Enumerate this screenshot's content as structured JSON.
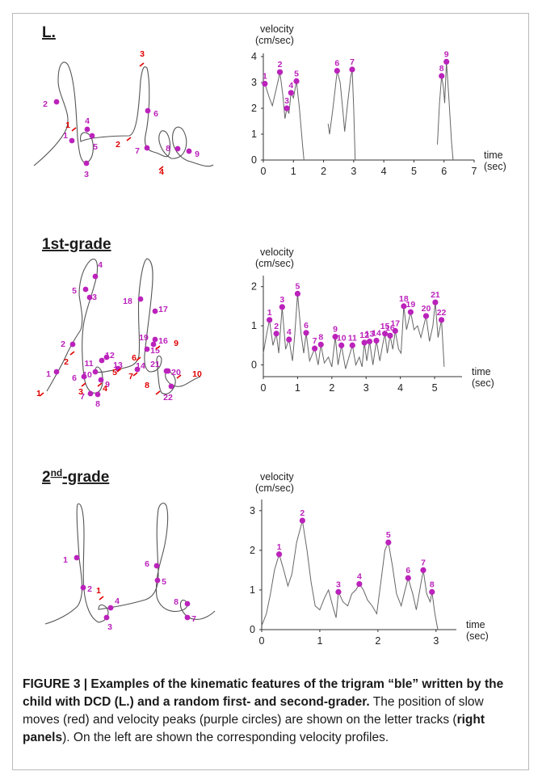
{
  "panels": [
    {
      "label": "L.",
      "track_peak_labels": [
        "1",
        "2",
        "3",
        "4",
        "5",
        "6",
        "7",
        "8",
        "9"
      ],
      "track_slow_labels": [
        "1",
        "2",
        "3",
        "4"
      ]
    },
    {
      "label": "1st-grade",
      "track_peak_labels": [
        "1",
        "2",
        "3",
        "4",
        "5",
        "6",
        "7",
        "8",
        "9",
        "10",
        "11",
        "12",
        "13",
        "14",
        "15",
        "16",
        "17",
        "18",
        "19",
        "20",
        "21",
        "22"
      ],
      "track_slow_labels": [
        "1",
        "2",
        "3",
        "4",
        "5",
        "6",
        "7",
        "8",
        "9",
        "10"
      ]
    },
    {
      "label": "2nd-grade",
      "label_main": "2",
      "label_sup": "nd",
      "label_rest": "-grade",
      "track_peak_labels": [
        "1",
        "2",
        "3",
        "4",
        "5",
        "6",
        "7",
        "8"
      ],
      "track_slow_labels": [
        "1"
      ]
    }
  ],
  "colors": {
    "peak": "#bb22bb",
    "slow": "#e00000",
    "trace": "#666666"
  },
  "chart_data": [
    {
      "type": "line",
      "xlabel": "time (sec)",
      "ylabel": "velocity (cm/sec)",
      "ylabel_line1": "velocity",
      "ylabel_line2": "(cm/sec)",
      "xlabel_line1": "time",
      "xlabel_line2": "(sec)",
      "xlim": [
        0,
        7
      ],
      "ylim": [
        0,
        4
      ],
      "xticks": [
        "0",
        "1",
        "2",
        "3",
        "4",
        "5",
        "6",
        "7"
      ],
      "yticks": [
        "0",
        "1",
        "2",
        "3",
        "4"
      ],
      "peaks": [
        {
          "label": "1",
          "x": 0.05,
          "y": 2.95
        },
        {
          "label": "2",
          "x": 0.55,
          "y": 3.4
        },
        {
          "label": "3",
          "x": 0.78,
          "y": 2.0
        },
        {
          "label": "4",
          "x": 0.92,
          "y": 2.6
        },
        {
          "label": "5",
          "x": 1.1,
          "y": 3.05
        },
        {
          "label": "6",
          "x": 2.45,
          "y": 3.45
        },
        {
          "label": "7",
          "x": 2.95,
          "y": 3.5
        },
        {
          "label": "8",
          "x": 5.92,
          "y": 3.25
        },
        {
          "label": "9",
          "x": 6.08,
          "y": 3.8
        }
      ],
      "segments": [
        [
          [
            0,
            2.9
          ],
          [
            0.05,
            2.95
          ],
          [
            0.2,
            2.4
          ],
          [
            0.3,
            2.1
          ],
          [
            0.4,
            2.6
          ],
          [
            0.5,
            3.1
          ],
          [
            0.55,
            3.4
          ],
          [
            0.65,
            2.5
          ],
          [
            0.72,
            1.6
          ],
          [
            0.78,
            2.0
          ],
          [
            0.85,
            1.8
          ],
          [
            0.92,
            2.6
          ],
          [
            1.0,
            2.4
          ],
          [
            1.1,
            3.05
          ],
          [
            1.2,
            2.0
          ],
          [
            1.3,
            0.6
          ],
          [
            1.35,
            0
          ]
        ],
        [
          [
            2.15,
            1.4
          ],
          [
            2.2,
            1.0
          ],
          [
            2.3,
            1.9
          ],
          [
            2.4,
            2.9
          ],
          [
            2.45,
            3.45
          ],
          [
            2.55,
            3.0
          ],
          [
            2.65,
            1.8
          ],
          [
            2.7,
            1.1
          ],
          [
            2.8,
            2.2
          ],
          [
            2.9,
            3.2
          ],
          [
            2.95,
            3.5
          ],
          [
            3.0,
            2.0
          ],
          [
            3.05,
            0
          ]
        ],
        [
          [
            5.78,
            0.6
          ],
          [
            5.85,
            2.2
          ],
          [
            5.92,
            3.25
          ],
          [
            5.98,
            2.8
          ],
          [
            6.02,
            2.2
          ],
          [
            6.08,
            3.8
          ],
          [
            6.15,
            2.6
          ],
          [
            6.25,
            0.7
          ],
          [
            6.3,
            0
          ]
        ]
      ]
    },
    {
      "type": "line",
      "xlabel": "time (sec)",
      "ylabel": "velocity (cm/sec)",
      "ylabel_line1": "velocity",
      "ylabel_line2": "(cm/sec)",
      "xlabel_line1": "time",
      "xlabel_line2": "(sec)",
      "xlim": [
        0,
        5.8
      ],
      "ylim": [
        -0.3,
        2.2
      ],
      "xticks": [
        "0",
        "1",
        "2",
        "3",
        "4",
        "5"
      ],
      "xtick_values": [
        0,
        1,
        2,
        3,
        4,
        5
      ],
      "yticks": [
        "0",
        "1",
        "2"
      ],
      "ytick_values": [
        0,
        1,
        2
      ],
      "peaks": [
        {
          "label": "1",
          "x": 0.18,
          "y": 1.15
        },
        {
          "label": "2",
          "x": 0.38,
          "y": 0.8
        },
        {
          "label": "3",
          "x": 0.55,
          "y": 1.48
        },
        {
          "label": "4",
          "x": 0.75,
          "y": 0.65
        },
        {
          "label": "5",
          "x": 1.0,
          "y": 1.82
        },
        {
          "label": "6",
          "x": 1.25,
          "y": 0.82
        },
        {
          "label": "7",
          "x": 1.5,
          "y": 0.42
        },
        {
          "label": "8",
          "x": 1.68,
          "y": 0.52
        },
        {
          "label": "9",
          "x": 2.1,
          "y": 0.72
        },
        {
          "label": "10",
          "x": 2.28,
          "y": 0.5
        },
        {
          "label": "11",
          "x": 2.6,
          "y": 0.5
        },
        {
          "label": "12",
          "x": 2.95,
          "y": 0.57
        },
        {
          "label": "13",
          "x": 3.1,
          "y": 0.6
        },
        {
          "label": "14",
          "x": 3.3,
          "y": 0.62
        },
        {
          "label": "15",
          "x": 3.55,
          "y": 0.8
        },
        {
          "label": "16",
          "x": 3.7,
          "y": 0.75
        },
        {
          "label": "17",
          "x": 3.85,
          "y": 0.87
        },
        {
          "label": "18",
          "x": 4.1,
          "y": 1.5
        },
        {
          "label": "19",
          "x": 4.3,
          "y": 1.35
        },
        {
          "label": "20",
          "x": 4.75,
          "y": 1.25
        },
        {
          "label": "21",
          "x": 5.02,
          "y": 1.6
        },
        {
          "label": "22",
          "x": 5.2,
          "y": 1.15
        }
      ],
      "segments": [
        [
          [
            0,
            0.3
          ],
          [
            0.1,
            0.8
          ],
          [
            0.18,
            1.15
          ],
          [
            0.28,
            0.5
          ],
          [
            0.38,
            0.8
          ],
          [
            0.45,
            0.3
          ],
          [
            0.55,
            1.48
          ],
          [
            0.65,
            0.4
          ],
          [
            0.75,
            0.65
          ],
          [
            0.85,
            0.1
          ],
          [
            0.92,
            0.8
          ],
          [
            1.0,
            1.82
          ],
          [
            1.1,
            0.8
          ],
          [
            1.18,
            0.3
          ],
          [
            1.25,
            0.82
          ],
          [
            1.35,
            0.1
          ],
          [
            1.5,
            0.42
          ],
          [
            1.6,
            0.0
          ],
          [
            1.68,
            0.52
          ],
          [
            1.78,
            0.05
          ],
          [
            1.9,
            0.2
          ],
          [
            2.0,
            -0.05
          ],
          [
            2.1,
            0.72
          ],
          [
            2.18,
            0.0
          ],
          [
            2.28,
            0.5
          ],
          [
            2.4,
            -0.1
          ],
          [
            2.5,
            0.2
          ],
          [
            2.6,
            0.5
          ],
          [
            2.7,
            0.0
          ],
          [
            2.8,
            0.2
          ],
          [
            2.88,
            -0.05
          ],
          [
            2.95,
            0.57
          ],
          [
            3.02,
            0.1
          ],
          [
            3.1,
            0.6
          ],
          [
            3.2,
            0.0
          ],
          [
            3.3,
            0.62
          ],
          [
            3.4,
            0.1
          ],
          [
            3.48,
            0.5
          ],
          [
            3.55,
            0.8
          ],
          [
            3.62,
            0.3
          ],
          [
            3.7,
            0.75
          ],
          [
            3.78,
            0.4
          ],
          [
            3.85,
            0.87
          ],
          [
            3.95,
            0.4
          ],
          [
            4.02,
            0.3
          ],
          [
            4.1,
            1.5
          ],
          [
            4.18,
            0.9
          ],
          [
            4.3,
            1.35
          ],
          [
            4.4,
            0.9
          ],
          [
            4.5,
            1.0
          ],
          [
            4.6,
            0.7
          ],
          [
            4.75,
            1.25
          ],
          [
            4.85,
            0.6
          ],
          [
            4.95,
            1.0
          ],
          [
            5.02,
            1.6
          ],
          [
            5.1,
            0.7
          ],
          [
            5.2,
            1.15
          ],
          [
            5.28,
            -0.05
          ]
        ]
      ]
    },
    {
      "type": "line",
      "xlabel": "time (sec)",
      "ylabel": "velocity (cm/sec)",
      "ylabel_line1": "velocity",
      "ylabel_line2": "(cm/sec)",
      "xlabel_line1": "time",
      "xlabel_line2": "(sec)",
      "xlim": [
        0,
        3.35
      ],
      "ylim": [
        0,
        3.2
      ],
      "xticks": [
        "0",
        "1",
        "2",
        "3"
      ],
      "xtick_values": [
        0,
        1,
        2,
        3
      ],
      "yticks": [
        "0",
        "1",
        "2",
        "3"
      ],
      "ytick_values": [
        0,
        1,
        2,
        3
      ],
      "peaks": [
        {
          "label": "1",
          "x": 0.3,
          "y": 1.9
        },
        {
          "label": "2",
          "x": 0.7,
          "y": 2.75
        },
        {
          "label": "3",
          "x": 1.32,
          "y": 0.95
        },
        {
          "label": "4",
          "x": 1.68,
          "y": 1.15
        },
        {
          "label": "5",
          "x": 2.18,
          "y": 2.2
        },
        {
          "label": "6",
          "x": 2.52,
          "y": 1.3
        },
        {
          "label": "7",
          "x": 2.78,
          "y": 1.5
        },
        {
          "label": "8",
          "x": 2.93,
          "y": 0.95
        }
      ],
      "segments": [
        [
          [
            0,
            0.1
          ],
          [
            0.08,
            0.4
          ],
          [
            0.15,
            0.9
          ],
          [
            0.22,
            1.5
          ],
          [
            0.3,
            1.9
          ],
          [
            0.38,
            1.5
          ],
          [
            0.45,
            1.1
          ],
          [
            0.52,
            1.4
          ],
          [
            0.6,
            2.2
          ],
          [
            0.7,
            2.75
          ],
          [
            0.78,
            2.0
          ],
          [
            0.85,
            1.2
          ],
          [
            0.92,
            0.6
          ],
          [
            1.0,
            0.5
          ],
          [
            1.08,
            0.8
          ],
          [
            1.15,
            1.0
          ],
          [
            1.22,
            0.6
          ],
          [
            1.28,
            0.3
          ],
          [
            1.32,
            0.95
          ],
          [
            1.4,
            0.7
          ],
          [
            1.48,
            0.6
          ],
          [
            1.55,
            0.9
          ],
          [
            1.62,
            1.0
          ],
          [
            1.68,
            1.15
          ],
          [
            1.75,
            1.0
          ],
          [
            1.82,
            0.75
          ],
          [
            1.9,
            0.6
          ],
          [
            1.98,
            0.4
          ],
          [
            2.05,
            1.2
          ],
          [
            2.12,
            2.0
          ],
          [
            2.18,
            2.2
          ],
          [
            2.25,
            1.6
          ],
          [
            2.32,
            0.9
          ],
          [
            2.4,
            0.6
          ],
          [
            2.45,
            0.9
          ],
          [
            2.52,
            1.3
          ],
          [
            2.6,
            0.9
          ],
          [
            2.66,
            0.5
          ],
          [
            2.72,
            1.0
          ],
          [
            2.78,
            1.5
          ],
          [
            2.84,
            0.9
          ],
          [
            2.9,
            0.7
          ],
          [
            2.93,
            0.95
          ],
          [
            2.98,
            0.4
          ],
          [
            3.03,
            0.0
          ]
        ]
      ]
    }
  ],
  "caption": {
    "bold_text": "FIGURE 3 | Examples of the kinematic features of the trigram “ble” written by the child with DCD (L.) and a random first- and second-grader.",
    "text_1": " The position of slow moves (red) and velocity peaks (purple circles) are shown on the letter tracks (",
    "bold_inline": "right panels",
    "text_2": "). On the left are shown the corresponding velocity profiles."
  }
}
